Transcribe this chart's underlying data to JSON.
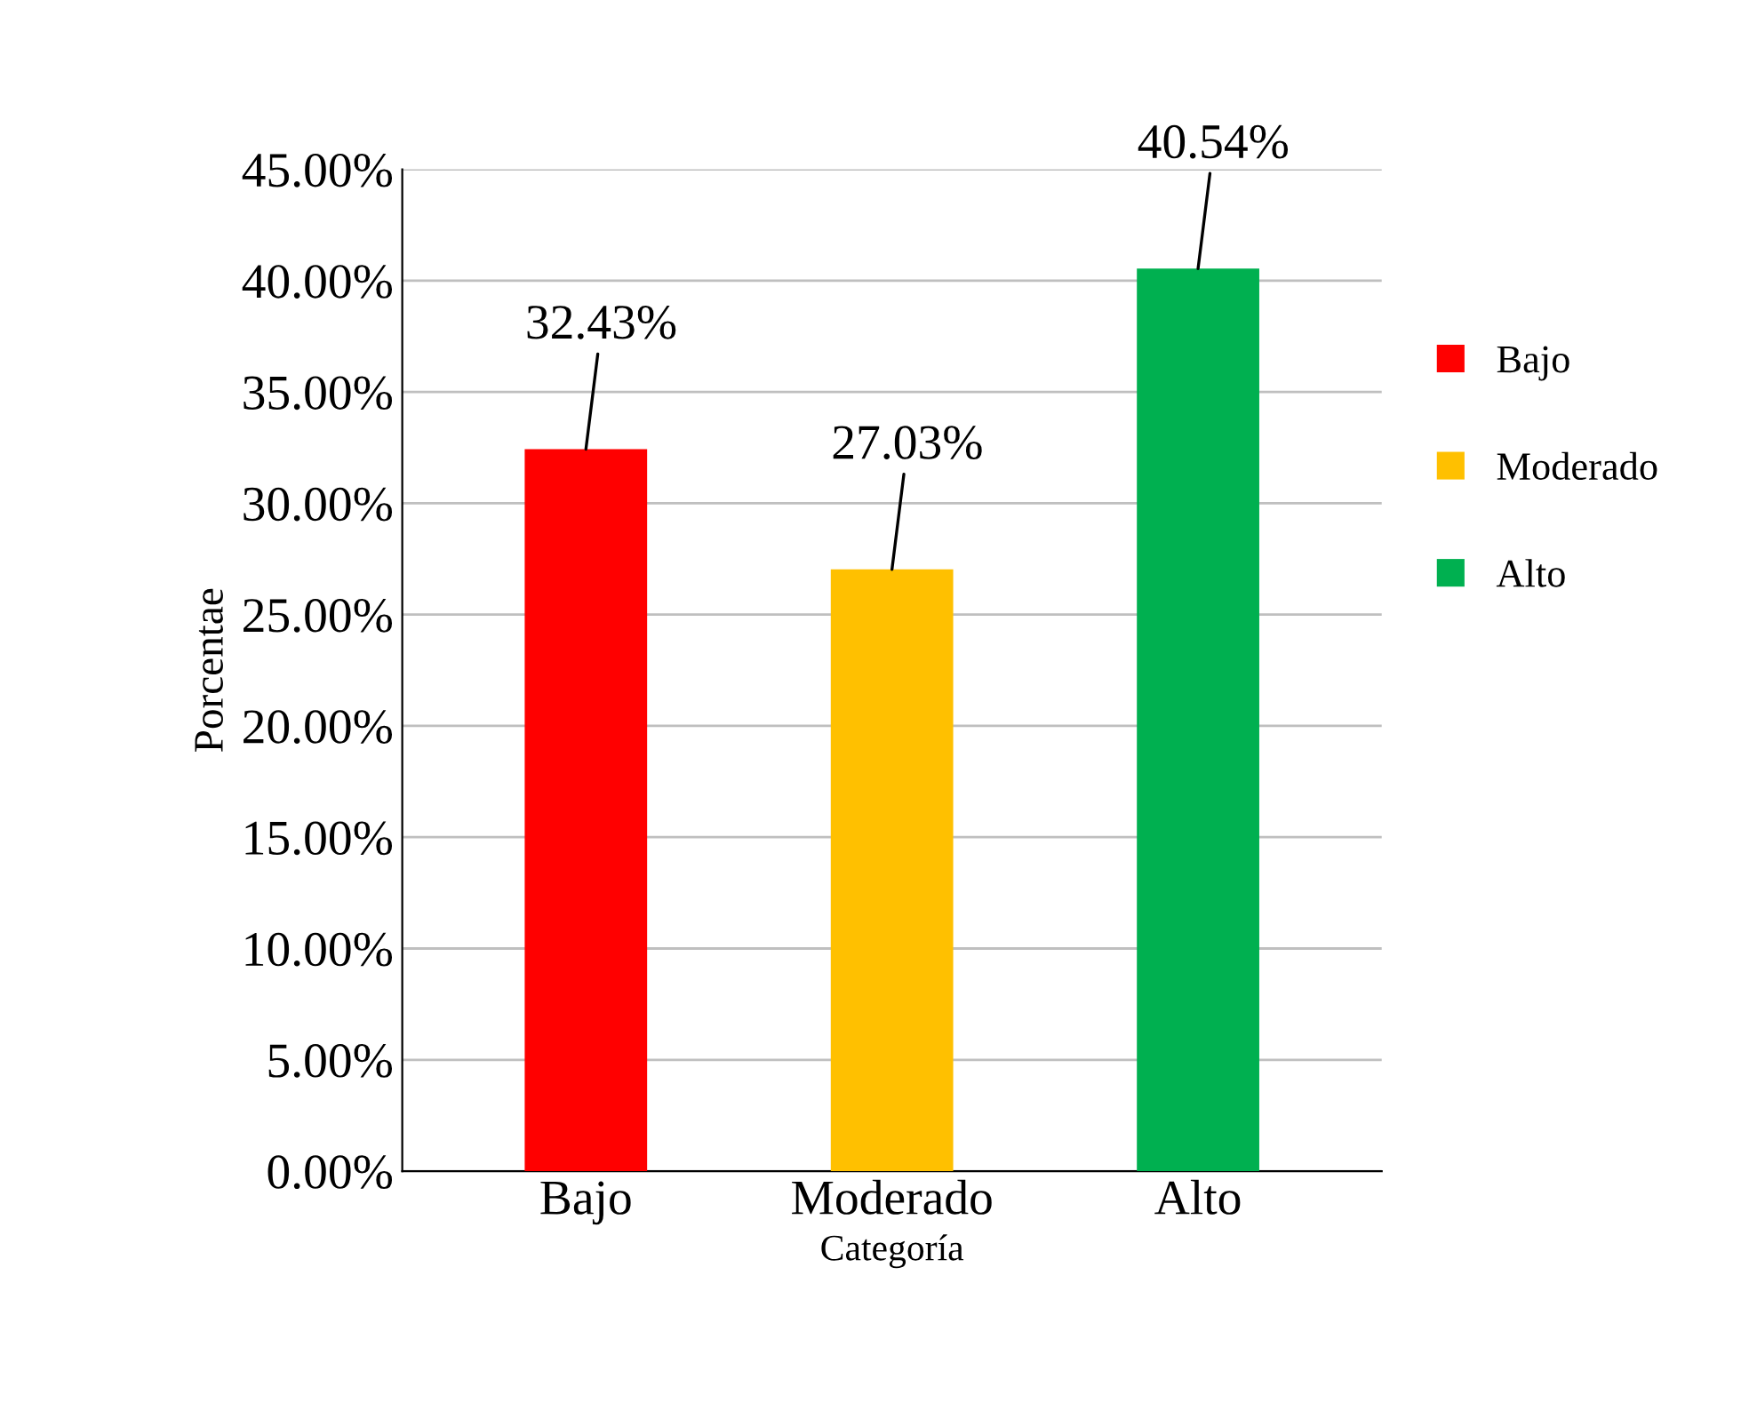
{
  "chart_data": {
    "type": "bar",
    "xlabel": "Categoría",
    "ylabel": "Porcentae",
    "categories": [
      "Bajo",
      "Moderado",
      "Alto"
    ],
    "series": [
      {
        "name": "Bajo",
        "color": "#ff0000",
        "values": [
          32.43,
          null,
          null
        ],
        "value_labels": [
          "32.43%",
          null,
          null
        ]
      },
      {
        "name": "Moderado",
        "color": "#ffc000",
        "values": [
          null,
          27.03,
          null
        ],
        "value_labels": [
          null,
          "27.03%",
          null
        ]
      },
      {
        "name": "Alto",
        "color": "#00b050",
        "values": [
          null,
          null,
          40.54
        ],
        "value_labels": [
          null,
          null,
          "40.54%"
        ]
      }
    ],
    "ylim": [
      0,
      45
    ],
    "yticks": [
      {
        "value": 0,
        "label": "0.00%"
      },
      {
        "value": 5,
        "label": "5.00%"
      },
      {
        "value": 10,
        "label": "10.00%"
      },
      {
        "value": 15,
        "label": "15.00%"
      },
      {
        "value": 20,
        "label": "20.00%"
      },
      {
        "value": 25,
        "label": "25.00%"
      },
      {
        "value": 30,
        "label": "30.00%"
      },
      {
        "value": 35,
        "label": "35.00%"
      },
      {
        "value": 40,
        "label": "40.00%"
      },
      {
        "value": 45,
        "label": "45.00%"
      }
    ],
    "grid": "y",
    "legend": "right"
  }
}
